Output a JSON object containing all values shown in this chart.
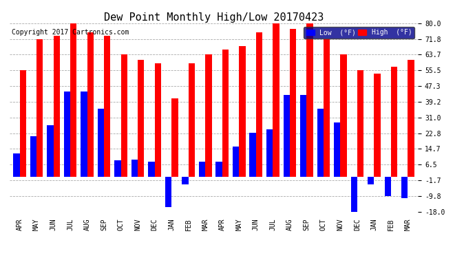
{
  "title": "Dew Point Monthly High/Low 20170423",
  "copyright": "Copyright 2017 Cartronics.com",
  "months": [
    "APR",
    "MAY",
    "JUN",
    "JUL",
    "AUG",
    "SEP",
    "OCT",
    "NOV",
    "DEC",
    "JAN",
    "FEB",
    "MAR",
    "APR",
    "MAY",
    "JUN",
    "JUL",
    "AUG",
    "SEP",
    "OCT",
    "NOV",
    "DEC",
    "JAN",
    "FEB",
    "MAR"
  ],
  "high": [
    55.5,
    71.8,
    73.5,
    80.0,
    75.2,
    73.5,
    63.7,
    61.0,
    59.0,
    41.0,
    59.0,
    63.7,
    66.2,
    68.0,
    75.2,
    80.0,
    77.0,
    82.4,
    71.8,
    63.7,
    55.5,
    53.6,
    57.2,
    60.8
  ],
  "low": [
    12.2,
    21.2,
    27.0,
    44.6,
    44.6,
    35.6,
    8.6,
    9.0,
    8.0,
    -15.8,
    -4.0,
    8.0,
    8.0,
    16.0,
    23.0,
    24.8,
    42.8,
    42.8,
    35.6,
    28.4,
    -18.0,
    -4.0,
    -9.8,
    -11.0
  ],
  "bar_color_high": "#ff0000",
  "bar_color_low": "#0000ff",
  "bg_color": "#ffffff",
  "grid_color": "#aaaaaa",
  "ylim_min": -18.0,
  "ylim_max": 80.0,
  "yticks": [
    -18.0,
    -9.8,
    -1.7,
    6.5,
    14.7,
    22.8,
    31.0,
    39.2,
    47.3,
    55.5,
    63.7,
    71.8,
    80.0
  ],
  "ylabel_fontsize": 7,
  "title_fontsize": 11,
  "xlabel_fontsize": 7,
  "copyright_fontsize": 7,
  "fig_width": 6.9,
  "fig_height": 3.75,
  "dpi": 100
}
